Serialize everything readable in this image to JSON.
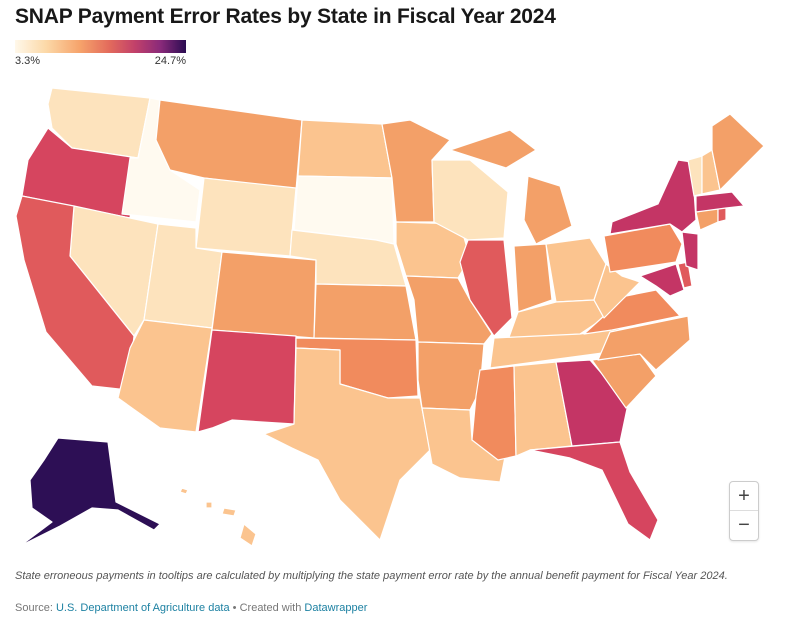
{
  "title": "SNAP Payment Error Rates by State in Fiscal Year 2024",
  "legend": {
    "min_label": "3.3%",
    "max_label": "24.7%",
    "min_value": 3.3,
    "max_value": 24.7
  },
  "map": {
    "colors": {
      "very_light": "#fffaf0",
      "pale": "#fde3bd",
      "light": "#fbc48f",
      "medium": "#f3a068",
      "orange": "#f18b5d",
      "red": "#e05a5c",
      "crimson": "#d6455f",
      "magenta": "#c43565",
      "darkest": "#2d0f55"
    }
  },
  "zoom": {
    "in_label": "+",
    "out_label": "−"
  },
  "note": "State erroneous payments in tooltips are calculated by multiplying the state payment error rate by the annual benefit payment for Fiscal Year 2024.",
  "source": {
    "prefix": "Source: ",
    "link1": "U.S. Department of Agriculture data",
    "separator": " • Created with ",
    "link2": "Datawrapper"
  }
}
